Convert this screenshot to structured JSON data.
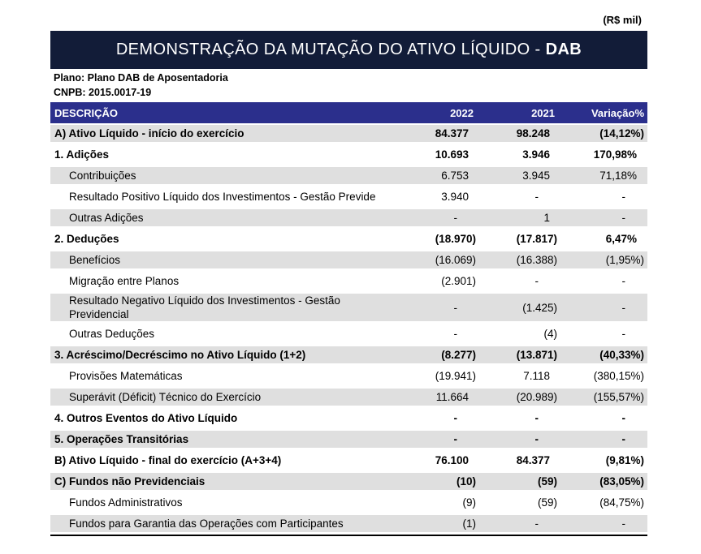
{
  "currency_note": "(R$ mil)",
  "title": {
    "main": "DEMONSTRAÇÃO DA MUTAÇÃO DO ATIVO LÍQUIDO -",
    "suffix": "DAB"
  },
  "plan": {
    "plano": "Plano: Plano DAB de Aposentadoria",
    "cnpb": "CNPB: 2015.0017-19"
  },
  "colors": {
    "banner_navy": "#121C38",
    "header_blue": "#2B2F8C",
    "row_stripe": "#DFDFDF",
    "rule_black": "#000000"
  },
  "table": {
    "columns": [
      "DESCRIÇÃO",
      "2022",
      "2021",
      "Variação%"
    ],
    "rows": [
      {
        "label": "A) Ativo Líquido - início do exercício",
        "y2022": "84.377",
        "y2021": "98.248",
        "variacao": "(14,12%)",
        "bold": true,
        "indent": false
      },
      {
        "label": "1. Adições",
        "y2022": "10.693",
        "y2021": "3.946",
        "variacao": "170,98%",
        "bold": true,
        "indent": false
      },
      {
        "label": "Contribuições",
        "y2022": "6.753",
        "y2021": "3.945",
        "variacao": "71,18%",
        "bold": false,
        "indent": true
      },
      {
        "label": "Resultado Positivo Líquido dos Investimentos - Gestão Previde",
        "y2022": "3.940",
        "y2021": "-",
        "variacao": "-",
        "bold": false,
        "indent": true
      },
      {
        "label": "Outras Adições",
        "y2022": "-",
        "y2021": "1",
        "variacao": "-",
        "bold": false,
        "indent": true
      },
      {
        "label": "2. Deduções",
        "y2022": "(18.970)",
        "y2021": "(17.817)",
        "variacao": "6,47%",
        "bold": true,
        "indent": false
      },
      {
        "label": "Benefícios",
        "y2022": "(16.069)",
        "y2021": "(16.388)",
        "variacao": "(1,95%)",
        "bold": false,
        "indent": true
      },
      {
        "label": "Migração entre Planos",
        "y2022": "(2.901)",
        "y2021": "-",
        "variacao": "-",
        "bold": false,
        "indent": true
      },
      {
        "label": "Resultado Negativo Líquido dos Investimentos - Gestão\nPrevidencial",
        "y2022": "-",
        "y2021": "(1.425)",
        "variacao": "-",
        "bold": false,
        "indent": true
      },
      {
        "label": "Outras Deduções",
        "y2022": "-",
        "y2021": "(4)",
        "variacao": "-",
        "bold": false,
        "indent": true
      },
      {
        "label": "3. Acréscimo/Decréscimo no Ativo Líquido (1+2)",
        "y2022": "(8.277)",
        "y2021": "(13.871)",
        "variacao": "(40,33%)",
        "bold": true,
        "indent": false
      },
      {
        "label": "Provisões Matemáticas",
        "y2022": "(19.941)",
        "y2021": "7.118",
        "variacao": "(380,15%)",
        "bold": false,
        "indent": true
      },
      {
        "label": "Superávit (Déficit) Técnico do Exercício",
        "y2022": "11.664",
        "y2021": "(20.989)",
        "variacao": "(155,57%)",
        "bold": false,
        "indent": true
      },
      {
        "label": "4. Outros Eventos do Ativo Líquido",
        "y2022": "-",
        "y2021": "-",
        "variacao": "-",
        "bold": true,
        "indent": false
      },
      {
        "label": "5. Operações Transitórias",
        "y2022": "-",
        "y2021": "-",
        "variacao": "-",
        "bold": true,
        "indent": false
      },
      {
        "label": "B) Ativo Líquido - final do exercício (A+3+4)",
        "y2022": "76.100",
        "y2021": "84.377",
        "variacao": "(9,81%)",
        "bold": true,
        "indent": false
      },
      {
        "label": "C) Fundos não Previdenciais",
        "y2022": "(10)",
        "y2021": "(59)",
        "variacao": "(83,05%)",
        "bold": true,
        "indent": false
      },
      {
        "label": "Fundos Administrativos",
        "y2022": "(9)",
        "y2021": "(59)",
        "variacao": "(84,75%)",
        "bold": false,
        "indent": true
      },
      {
        "label": "Fundos para Garantia das Operações com Participantes",
        "y2022": "(1)",
        "y2021": "-",
        "variacao": "-",
        "bold": false,
        "indent": true
      }
    ]
  }
}
